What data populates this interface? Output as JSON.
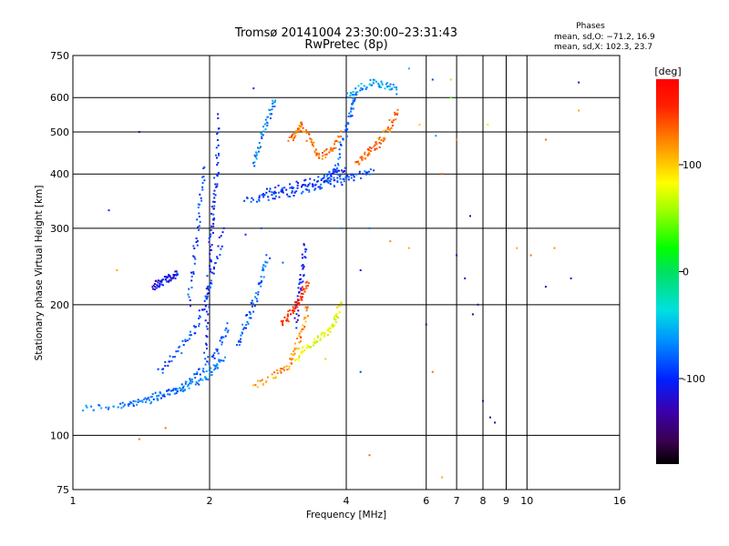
{
  "chart_data": {
    "type": "scatter",
    "title": "Tromsø 20141004 23:30:00–23:31:43",
    "subtitle": "RwPretec (8p)",
    "xlabel": "Frequency [MHz]",
    "ylabel": "Stationary phase Virtual Height [km]",
    "xscale": "log",
    "yscale": "log",
    "xlim": [
      1,
      16
    ],
    "ylim": [
      75,
      750
    ],
    "grid": true,
    "xticks": [
      1,
      2,
      4,
      6,
      8,
      10,
      16
    ],
    "xticks_minor": [
      7,
      9
    ],
    "yticks": [
      75,
      100,
      200,
      300,
      400,
      500,
      600,
      750
    ],
    "yticks_minor": [],
    "phase_stats": {
      "heading": "Phases",
      "line_o": "mean, sd,O: −71.2, 16.9",
      "line_x": "mean, sd,X: 102.3, 23.7"
    },
    "colorbar": {
      "label": "[deg]",
      "range": [
        -180,
        180
      ],
      "ticks": [
        100,
        0,
        -100
      ]
    },
    "traces": [
      {
        "name": "",
        "f": [
          1.05,
          1.25,
          1.45,
          1.65,
          1.8,
          1.95,
          2.05,
          2.15
        ],
        "h": [
          115,
          117,
          121,
          126,
          130,
          136,
          143,
          150
        ],
        "phase": -70
      },
      {
        "name": "",
        "f": [
          1.3,
          1.5,
          1.65,
          1.8,
          1.95,
          2.1,
          2.2
        ],
        "h": [
          118,
          121,
          126,
          133,
          143,
          160,
          180
        ],
        "phase": -80
      },
      {
        "name": "",
        "f": [
          1.55,
          1.7,
          1.85,
          1.95,
          2.05,
          2.15
        ],
        "h": [
          140,
          155,
          175,
          200,
          240,
          300
        ],
        "phase": -90
      },
      {
        "name": "",
        "f": [
          2.5,
          2.8,
          3.0,
          3.1,
          3.2,
          3.3
        ],
        "h": [
          130,
          138,
          145,
          158,
          175,
          200
        ],
        "phase": 120
      },
      {
        "name": "",
        "f": [
          3.1,
          3.3,
          3.5,
          3.7,
          3.8,
          3.9
        ],
        "h": [
          150,
          160,
          168,
          175,
          185,
          205
        ],
        "phase": 80
      },
      {
        "name": "",
        "f": [
          2.4,
          2.7,
          3.0,
          3.3,
          3.6,
          3.9,
          4.2,
          4.6
        ],
        "h": [
          350,
          355,
          362,
          370,
          378,
          385,
          395,
          405
        ],
        "phase": -90
      },
      {
        "name": "",
        "f": [
          2.6,
          2.9,
          3.2,
          3.5,
          3.8,
          4.0
        ],
        "h": [
          360,
          372,
          380,
          388,
          398,
          410
        ],
        "phase": -95
      },
      {
        "name": "",
        "f": [
          3.6,
          3.8,
          4.0,
          4.1,
          4.2
        ],
        "h": [
          380,
          420,
          500,
          560,
          620
        ],
        "phase": -80
      },
      {
        "name": "",
        "f": [
          3.0,
          3.1,
          3.2,
          3.35,
          3.5,
          3.7,
          3.9
        ],
        "h": [
          480,
          500,
          520,
          470,
          440,
          450,
          500
        ],
        "phase": 130
      },
      {
        "name": "",
        "f": [
          4.2,
          4.4,
          4.6,
          4.8,
          5.0,
          5.2
        ],
        "h": [
          420,
          440,
          460,
          480,
          520,
          560
        ],
        "phase": 130
      },
      {
        "name": "",
        "f": [
          3.1,
          3.15,
          3.2,
          3.25
        ],
        "h": [
          180,
          210,
          240,
          280
        ],
        "phase": -110
      },
      {
        "name": "",
        "f": [
          1.95,
          1.98,
          2.0,
          2.02,
          2.05,
          2.08,
          2.1
        ],
        "h": [
          150,
          200,
          250,
          300,
          350,
          420,
          550
        ],
        "phase": -100
      },
      {
        "name": "",
        "f": [
          1.8,
          1.85,
          1.9,
          1.95
        ],
        "h": [
          200,
          260,
          330,
          420
        ],
        "phase": -90
      },
      {
        "name": "",
        "f": [
          1.5,
          1.55,
          1.6,
          1.65,
          1.7
        ],
        "h": [
          220,
          225,
          228,
          232,
          236
        ],
        "phase": -110
      },
      {
        "name": "",
        "f": [
          2.3,
          2.4,
          2.5,
          2.6,
          2.7
        ],
        "h": [
          160,
          180,
          200,
          230,
          260
        ],
        "phase": -80
      },
      {
        "name": "",
        "f": [
          2.5,
          2.6,
          2.7,
          2.8
        ],
        "h": [
          420,
          480,
          540,
          600
        ],
        "phase": -70
      },
      {
        "name": "",
        "f": [
          2.9,
          3.0,
          3.1,
          3.2,
          3.3
        ],
        "h": [
          180,
          190,
          200,
          210,
          230
        ],
        "phase": 150
      },
      {
        "name": "",
        "f": [
          4.0,
          4.3,
          4.6,
          4.9,
          5.2
        ],
        "h": [
          600,
          630,
          650,
          640,
          620
        ],
        "phase": -60
      }
    ],
    "scatter_extra": [
      {
        "f": 1.4,
        "h": 500,
        "phase": -130
      },
      {
        "f": 1.2,
        "h": 330,
        "phase": -100
      },
      {
        "f": 1.25,
        "h": 240,
        "phase": 110
      },
      {
        "f": 1.4,
        "h": 98,
        "phase": 130
      },
      {
        "f": 1.6,
        "h": 104,
        "phase": 130
      },
      {
        "f": 2.5,
        "h": 630,
        "phase": -110
      },
      {
        "f": 4.3,
        "h": 240,
        "phase": -110
      },
      {
        "f": 4.3,
        "h": 140,
        "phase": -90
      },
      {
        "f": 4.5,
        "h": 90,
        "phase": 130
      },
      {
        "f": 5.0,
        "h": 280,
        "phase": 120
      },
      {
        "f": 5.5,
        "h": 270,
        "phase": 110
      },
      {
        "f": 6.0,
        "h": 180,
        "phase": -140
      },
      {
        "f": 6.2,
        "h": 140,
        "phase": 130
      },
      {
        "f": 6.5,
        "h": 80,
        "phase": 110
      },
      {
        "f": 7.0,
        "h": 260,
        "phase": -120
      },
      {
        "f": 7.3,
        "h": 230,
        "phase": -110
      },
      {
        "f": 7.5,
        "h": 320,
        "phase": -130
      },
      {
        "f": 7.6,
        "h": 190,
        "phase": -150
      },
      {
        "f": 7.8,
        "h": 200,
        "phase": -140
      },
      {
        "f": 8.0,
        "h": 120,
        "phase": -130
      },
      {
        "f": 8.3,
        "h": 110,
        "phase": -150
      },
      {
        "f": 8.5,
        "h": 107,
        "phase": -140
      },
      {
        "f": 9.5,
        "h": 270,
        "phase": 110
      },
      {
        "f": 10.2,
        "h": 260,
        "phase": 130
      },
      {
        "f": 11.0,
        "h": 220,
        "phase": -140
      },
      {
        "f": 11.5,
        "h": 270,
        "phase": 120
      },
      {
        "f": 12.5,
        "h": 230,
        "phase": -110
      },
      {
        "f": 11.0,
        "h": 480,
        "phase": 130
      },
      {
        "f": 13.0,
        "h": 650,
        "phase": -130
      },
      {
        "f": 13.0,
        "h": 560,
        "phase": 110
      },
      {
        "f": 5.8,
        "h": 520,
        "phase": 100
      },
      {
        "f": 6.3,
        "h": 490,
        "phase": -60
      },
      {
        "f": 6.8,
        "h": 600,
        "phase": 40
      },
      {
        "f": 7.0,
        "h": 480,
        "phase": 120
      },
      {
        "f": 8.2,
        "h": 520,
        "phase": 90
      },
      {
        "f": 6.5,
        "h": 400,
        "phase": 140
      },
      {
        "f": 5.5,
        "h": 700,
        "phase": -50
      },
      {
        "f": 6.2,
        "h": 660,
        "phase": -90
      },
      {
        "f": 6.8,
        "h": 660,
        "phase": 60
      },
      {
        "f": 2.4,
        "h": 290,
        "phase": -100
      },
      {
        "f": 2.6,
        "h": 300,
        "phase": -90
      },
      {
        "f": 2.9,
        "h": 250,
        "phase": -80
      },
      {
        "f": 3.6,
        "h": 150,
        "phase": 100
      },
      {
        "f": 3.9,
        "h": 300,
        "phase": -70
      },
      {
        "f": 4.5,
        "h": 300,
        "phase": -80
      }
    ]
  }
}
